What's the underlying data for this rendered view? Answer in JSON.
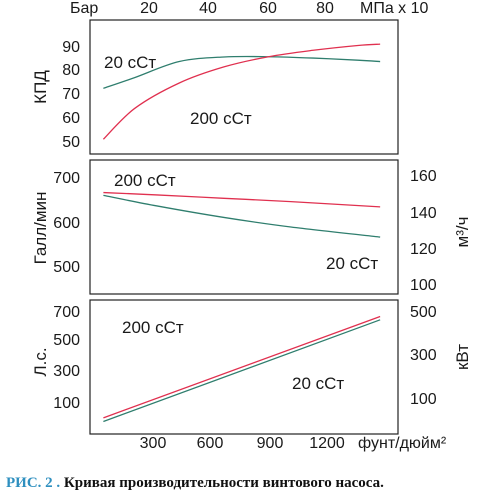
{
  "chart_data": [
    {
      "type": "line",
      "ylabel": "КПД",
      "top_axis": {
        "left_label": "Бар",
        "right_label": "МПа x 10",
        "ticks": [
          "20",
          "40",
          "60",
          "80"
        ]
      },
      "yticks": [
        "90",
        "80",
        "70",
        "60",
        "50"
      ],
      "ylim": [
        46,
        96
      ],
      "x": [
        60,
        200,
        400,
        600,
        800,
        1000,
        1200,
        1300
      ],
      "series": [
        {
          "name": "20 сСт",
          "color": "#2f7e6e",
          "values": [
            70.5,
            74.5,
            80.5,
            82.2,
            82.3,
            81.8,
            81.0,
            80.5
          ]
        },
        {
          "name": "200 сСт",
          "color": "#e0304f",
          "values": [
            51.5,
            63.0,
            72.5,
            78.5,
            82.3,
            84.7,
            86.5,
            87.0
          ]
        }
      ],
      "grid": false
    },
    {
      "type": "line",
      "ylabel": "Галл/мин",
      "y2label": "м³/ч",
      "yticks": [
        "700",
        "600",
        "500"
      ],
      "y2ticks": [
        "160",
        "140",
        "120",
        "100"
      ],
      "ylim": [
        450,
        730
      ],
      "x": [
        60,
        300,
        600,
        900,
        1300
      ],
      "series": [
        {
          "name": "200 сСт",
          "color": "#e0304f",
          "values": [
            662,
            657,
            650,
            643,
            632
          ]
        },
        {
          "name": "20 сСт",
          "color": "#2f7e6e",
          "values": [
            656,
            634,
            610,
            590,
            569
          ]
        }
      ],
      "grid": false
    },
    {
      "type": "line",
      "ylabel": "Л.с.",
      "y2label": "кВт",
      "yticks": [
        "700",
        "500",
        "300",
        "100"
      ],
      "y2ticks": [
        "500",
        "300",
        "100"
      ],
      "ylim": [
        0,
        730
      ],
      "x": [
        60,
        1300
      ],
      "xticks": [
        "300",
        "600",
        "900",
        "1200"
      ],
      "xunit": "фунт/дюйм²",
      "series": [
        {
          "name": "200 сСт",
          "color": "#e0304f",
          "values": [
            88,
            640
          ]
        },
        {
          "name": "20 сСт",
          "color": "#2f7e6e",
          "values": [
            68,
            622
          ]
        }
      ],
      "grid": false
    }
  ],
  "caption": {
    "label": "РИС. 2 .",
    "text": "Кривая производительности винтового насоса."
  }
}
